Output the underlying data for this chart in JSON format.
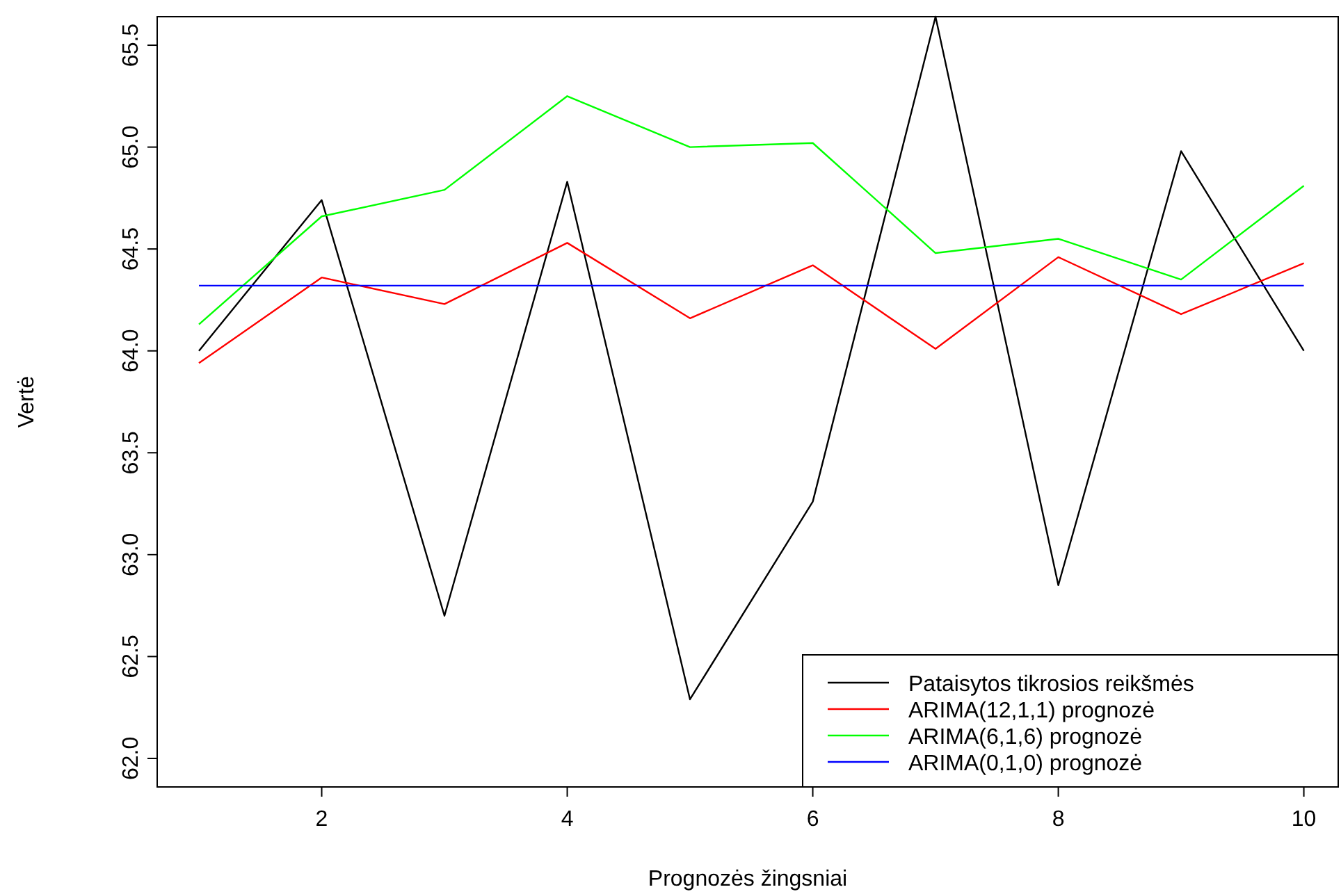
{
  "chart_data": {
    "type": "line",
    "xlabel": "Prognozės žingsniai",
    "ylabel": "Vertė",
    "x": [
      1,
      2,
      3,
      4,
      5,
      6,
      7,
      8,
      9,
      10
    ],
    "series": [
      {
        "name": "Pataisytos tikrosios reikšmės",
        "color": "#000000",
        "values": [
          64.0,
          64.74,
          62.7,
          64.83,
          62.29,
          63.26,
          65.64,
          62.85,
          64.98,
          64.0
        ]
      },
      {
        "name": "ARIMA(12,1,1) prognozė",
        "color": "#ff0000",
        "values": [
          63.94,
          64.36,
          64.23,
          64.53,
          64.16,
          64.42,
          64.01,
          64.46,
          64.18,
          64.43
        ]
      },
      {
        "name": "ARIMA(6,1,6) prognozė",
        "color": "#00ff00",
        "values": [
          64.13,
          64.66,
          64.79,
          65.25,
          65.0,
          65.02,
          64.48,
          64.55,
          64.35,
          64.81
        ]
      },
      {
        "name": "ARIMA(0,1,0) prognozė",
        "color": "#0000ff",
        "values": [
          64.32,
          64.32,
          64.32,
          64.32,
          64.32,
          64.32,
          64.32,
          64.32,
          64.32,
          64.32
        ]
      }
    ],
    "xlim": [
      0.66,
      10.28
    ],
    "ylim": [
      61.86,
      65.64
    ],
    "xticks": [
      2,
      4,
      6,
      8,
      10
    ],
    "yticks": [
      {
        "value": 62,
        "label": "62.0"
      },
      {
        "value": 62.5,
        "label": "62.5"
      },
      {
        "value": 63,
        "label": "63.0"
      },
      {
        "value": 63.5,
        "label": "63.5"
      },
      {
        "value": 64,
        "label": "64.0"
      },
      {
        "value": 64.5,
        "label": "64.5"
      },
      {
        "value": 65,
        "label": "65.0"
      },
      {
        "value": 65.5,
        "label": "65.5"
      }
    ],
    "grid": false,
    "legend": "bottom right",
    "marker": "none",
    "line_style": "solid"
  }
}
